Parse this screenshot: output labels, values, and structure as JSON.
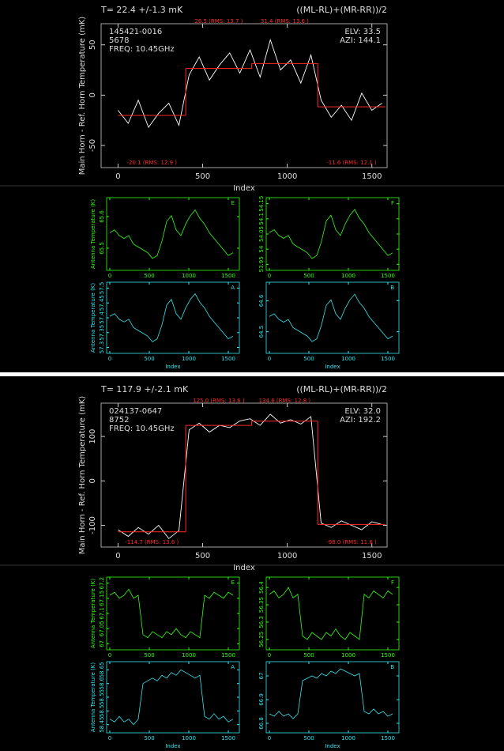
{
  "chart_data": [
    {
      "type": "line",
      "title": "T= 22.4 +/-1.3 mK",
      "subtitle": "((ML-RL)+(MR-RR))/2",
      "info_left": [
        "145421-0016",
        "5678",
        "FREQ: 10.45GHz"
      ],
      "info_right": [
        "ELV: 33.5",
        "AZI: 144.1"
      ],
      "xlabel": "Index",
      "ylabel": "Main Horn - Ref. Horn Temperature (mK)",
      "color": "#ffffff",
      "xlim": [
        -100,
        1590
      ],
      "ylim": [
        -72,
        71
      ],
      "xticks": [
        0,
        500,
        1000,
        1500
      ],
      "yticks": [
        -50,
        0,
        50
      ],
      "x": [
        0,
        60,
        120,
        180,
        240,
        300,
        360,
        420,
        480,
        540,
        600,
        660,
        720,
        780,
        840,
        900,
        960,
        1020,
        1080,
        1140,
        1200,
        1260,
        1320,
        1380,
        1440,
        1500,
        1560
      ],
      "values": [
        -15,
        -28,
        -5,
        -32,
        -18,
        -8,
        -30,
        20,
        38,
        15,
        30,
        42,
        22,
        45,
        18,
        55,
        25,
        35,
        12,
        40,
        -5,
        -22,
        -10,
        -25,
        2,
        -15,
        -8
      ],
      "segment_color": "#ff2a2a",
      "segments": [
        {
          "x": [
            0,
            400
          ],
          "value": -20.1,
          "label": "-20.1 (RMS: 12.9  )"
        },
        {
          "x": [
            400,
            790
          ],
          "value": 26.5,
          "label": "26.5 (RMS: 13.7  )"
        },
        {
          "x": [
            790,
            1180
          ],
          "value": 31.4,
          "label": "31.4 (RMS: 13.6  )"
        },
        {
          "x": [
            1180,
            1580
          ],
          "value": -11.6,
          "label": "-11.6 (RMS: 12.1  )"
        }
      ]
    },
    {
      "type": "line",
      "panel_label": "E",
      "ylabel": "Antenna Temperature (K)",
      "color": "#33ff11",
      "xlim": [
        -40,
        1640
      ],
      "ylim": [
        65.43,
        65.66
      ],
      "xticks": [
        0,
        500,
        1000,
        1500
      ],
      "yticks": [
        65.5,
        65.6
      ],
      "x": [
        0,
        60,
        120,
        180,
        240,
        300,
        360,
        420,
        480,
        540,
        600,
        660,
        720,
        780,
        840,
        900,
        960,
        1020,
        1080,
        1140,
        1200,
        1260,
        1320,
        1380,
        1440,
        1500,
        1560
      ],
      "values": [
        65.549,
        65.558,
        65.54,
        65.531,
        65.54,
        65.513,
        65.504,
        65.495,
        65.486,
        65.468,
        65.477,
        65.522,
        65.585,
        65.603,
        65.558,
        65.54,
        65.576,
        65.603,
        65.621,
        65.594,
        65.576,
        65.549,
        65.531,
        65.513,
        65.495,
        65.477,
        65.486
      ]
    },
    {
      "type": "line",
      "panel_label": "F",
      "color": "#33ff11",
      "xlim": [
        -40,
        1640
      ],
      "ylim": [
        53.93,
        54.17
      ],
      "xticks": [
        0,
        500,
        1000,
        1500
      ],
      "yticks": [
        53.95,
        54,
        54.05,
        54.1,
        54.15
      ],
      "x": [
        0,
        60,
        120,
        180,
        240,
        300,
        360,
        420,
        480,
        540,
        600,
        660,
        720,
        780,
        840,
        900,
        960,
        1020,
        1080,
        1140,
        1200,
        1260,
        1320,
        1380,
        1440,
        1500,
        1560
      ],
      "values": [
        54.055,
        54.064,
        54.045,
        54.036,
        54.045,
        54.017,
        54.007,
        53.998,
        53.988,
        53.969,
        53.979,
        54.026,
        54.093,
        54.112,
        54.064,
        54.045,
        54.083,
        54.112,
        54.131,
        54.102,
        54.083,
        54.055,
        54.036,
        54.017,
        53.998,
        53.979,
        53.988
      ]
    },
    {
      "type": "line",
      "panel_label": "A",
      "ylabel": "Antenna Temperature (K)",
      "xlabel": "Index",
      "color": "#33e6f0",
      "xlim": [
        -40,
        1640
      ],
      "ylim": [
        57.28,
        57.52
      ],
      "xticks": [
        0,
        500,
        1000,
        1500
      ],
      "yticks": [
        57.3,
        57.35,
        57.4,
        57.45,
        57.5
      ],
      "x": [
        0,
        60,
        120,
        180,
        240,
        300,
        360,
        420,
        480,
        540,
        600,
        660,
        720,
        780,
        840,
        900,
        960,
        1020,
        1080,
        1140,
        1200,
        1260,
        1320,
        1380,
        1440,
        1500,
        1560
      ],
      "values": [
        57.405,
        57.414,
        57.395,
        57.386,
        57.395,
        57.367,
        57.357,
        57.348,
        57.338,
        57.319,
        57.329,
        57.376,
        57.443,
        57.462,
        57.414,
        57.395,
        57.433,
        57.462,
        57.481,
        57.452,
        57.433,
        57.405,
        57.386,
        57.367,
        57.348,
        57.329,
        57.338
      ]
    },
    {
      "type": "line",
      "panel_label": "B",
      "xlabel": "Index",
      "color": "#33e6f0",
      "xlim": [
        -40,
        1640
      ],
      "ylim": [
        64.43,
        64.66
      ],
      "xticks": [
        0,
        500,
        1000,
        1500
      ],
      "yticks": [
        64.5,
        64.6
      ],
      "x": [
        0,
        60,
        120,
        180,
        240,
        300,
        360,
        420,
        480,
        540,
        600,
        660,
        720,
        780,
        840,
        900,
        960,
        1020,
        1080,
        1140,
        1200,
        1260,
        1320,
        1380,
        1440,
        1500,
        1560
      ],
      "values": [
        64.549,
        64.558,
        64.54,
        64.531,
        64.54,
        64.513,
        64.504,
        64.495,
        64.486,
        64.468,
        64.477,
        64.522,
        64.585,
        64.603,
        64.558,
        64.54,
        64.576,
        64.603,
        64.621,
        64.594,
        64.576,
        64.549,
        64.531,
        64.513,
        64.495,
        64.477,
        64.486
      ]
    },
    {
      "type": "line",
      "title": "T= 117.9 +/-2.1 mK",
      "subtitle": "((ML-RL)+(MR-RR))/2",
      "info_left": [
        "024137-0647",
        "8752",
        "FREQ: 10.45GHz"
      ],
      "info_right": [
        "ELV: 32.0",
        "AZI: 192.2"
      ],
      "xlabel": "Index",
      "ylabel": "Main Horn - Ref. Horn Temperature (mK)",
      "color": "#ffffff",
      "xlim": [
        -100,
        1590
      ],
      "ylim": [
        -149,
        175
      ],
      "xticks": [
        0,
        500,
        1000,
        1500
      ],
      "yticks": [
        -100,
        0,
        100
      ],
      "x": [
        0,
        60,
        120,
        180,
        240,
        300,
        360,
        420,
        480,
        540,
        600,
        660,
        720,
        780,
        840,
        900,
        960,
        1020,
        1080,
        1140,
        1200,
        1260,
        1320,
        1380,
        1440,
        1500,
        1560
      ],
      "values": [
        -110,
        -125,
        -105,
        -120,
        -100,
        -130,
        -112,
        115,
        130,
        110,
        125,
        120,
        135,
        140,
        125,
        150,
        130,
        138,
        128,
        145,
        -95,
        -105,
        -90,
        -100,
        -110,
        -92,
        -98
      ],
      "segment_color": "#ff2a2a",
      "segments": [
        {
          "x": [
            0,
            400
          ],
          "value": -114.7,
          "label": "-114.7 (RMS: 13.6  )"
        },
        {
          "x": [
            400,
            790
          ],
          "value": 125.0,
          "label": "125.0 (RMS: 13.6  )"
        },
        {
          "x": [
            790,
            1180
          ],
          "value": 134.6,
          "label": "134.6 (RMS: 12.8  )"
        },
        {
          "x": [
            1180,
            1580
          ],
          "value": -98.0,
          "label": "-98.0 (RMS: 11.6  )"
        }
      ]
    },
    {
      "type": "line",
      "panel_label": "E",
      "ylabel": "Antenna Temperature (K)",
      "color": "#33ff11",
      "xlim": [
        -40,
        1640
      ],
      "ylim": [
        66.98,
        67.22
      ],
      "xticks": [
        0,
        500,
        1000,
        1500
      ],
      "yticks": [
        67,
        67.05,
        67.1,
        67.15,
        67.2
      ],
      "x": [
        0,
        60,
        120,
        180,
        240,
        300,
        360,
        420,
        480,
        540,
        600,
        660,
        720,
        780,
        840,
        900,
        960,
        1020,
        1080,
        1140,
        1200,
        1260,
        1320,
        1380,
        1440,
        1500,
        1560
      ],
      "values": [
        67.16,
        67.17,
        67.15,
        67.16,
        67.18,
        67.15,
        67.16,
        67.03,
        67.02,
        67.04,
        67.03,
        67.02,
        67.04,
        67.03,
        67.05,
        67.03,
        67.02,
        67.04,
        67.03,
        67.02,
        67.16,
        67.15,
        67.17,
        67.16,
        67.15,
        67.17,
        67.16
      ]
    },
    {
      "type": "line",
      "panel_label": "F",
      "color": "#33ff11",
      "xlim": [
        -40,
        1640
      ],
      "ylim": [
        56.22,
        56.43
      ],
      "xticks": [
        0,
        500,
        1000,
        1500
      ],
      "yticks": [
        56.25,
        56.3,
        56.35,
        56.4
      ],
      "x": [
        0,
        60,
        120,
        180,
        240,
        300,
        360,
        420,
        480,
        540,
        600,
        660,
        720,
        780,
        840,
        900,
        960,
        1020,
        1080,
        1140,
        1200,
        1260,
        1320,
        1380,
        1440,
        1500,
        1560
      ],
      "values": [
        56.38,
        56.39,
        56.37,
        56.38,
        56.4,
        56.37,
        56.38,
        56.26,
        56.25,
        56.27,
        56.26,
        56.25,
        56.27,
        56.26,
        56.28,
        56.26,
        56.25,
        56.27,
        56.26,
        56.25,
        56.38,
        56.37,
        56.39,
        56.38,
        56.37,
        56.39,
        56.38
      ]
    },
    {
      "type": "line",
      "panel_label": "A",
      "ylabel": "Antenna Temperature (K)",
      "xlabel": "Index",
      "color": "#33e6f0",
      "xlim": [
        -40,
        1640
      ],
      "ylim": [
        58.42,
        58.68
      ],
      "xticks": [
        0,
        500,
        1000,
        1500
      ],
      "yticks": [
        58.45,
        58.5,
        58.55,
        58.6,
        58.65
      ],
      "x": [
        0,
        60,
        120,
        180,
        240,
        300,
        360,
        420,
        480,
        540,
        600,
        660,
        720,
        780,
        840,
        900,
        960,
        1020,
        1080,
        1140,
        1200,
        1260,
        1320,
        1380,
        1440,
        1500,
        1560
      ],
      "values": [
        58.47,
        58.46,
        58.48,
        58.46,
        58.47,
        58.45,
        58.47,
        58.6,
        58.61,
        58.62,
        58.61,
        58.63,
        58.62,
        58.64,
        58.63,
        58.65,
        58.64,
        58.63,
        58.62,
        58.63,
        58.48,
        58.47,
        58.49,
        58.47,
        58.48,
        58.46,
        58.47
      ]
    },
    {
      "type": "line",
      "panel_label": "B",
      "xlabel": "Index",
      "color": "#33e6f0",
      "xlim": [
        -40,
        1640
      ],
      "ylim": [
        66.76,
        67.06
      ],
      "xticks": [
        0,
        500,
        1000,
        1500
      ],
      "yticks": [
        66.8,
        66.9,
        67
      ],
      "x": [
        0,
        60,
        120,
        180,
        240,
        300,
        360,
        420,
        480,
        540,
        600,
        660,
        720,
        780,
        840,
        900,
        960,
        1020,
        1080,
        1140,
        1200,
        1260,
        1320,
        1380,
        1440,
        1500,
        1560
      ],
      "values": [
        66.84,
        66.83,
        66.85,
        66.83,
        66.84,
        66.82,
        66.84,
        66.98,
        66.99,
        67,
        66.99,
        67.01,
        67,
        67.02,
        67.01,
        67.03,
        67.02,
        67.01,
        67,
        67.01,
        66.85,
        66.84,
        66.86,
        66.84,
        66.85,
        66.83,
        66.84
      ]
    }
  ]
}
